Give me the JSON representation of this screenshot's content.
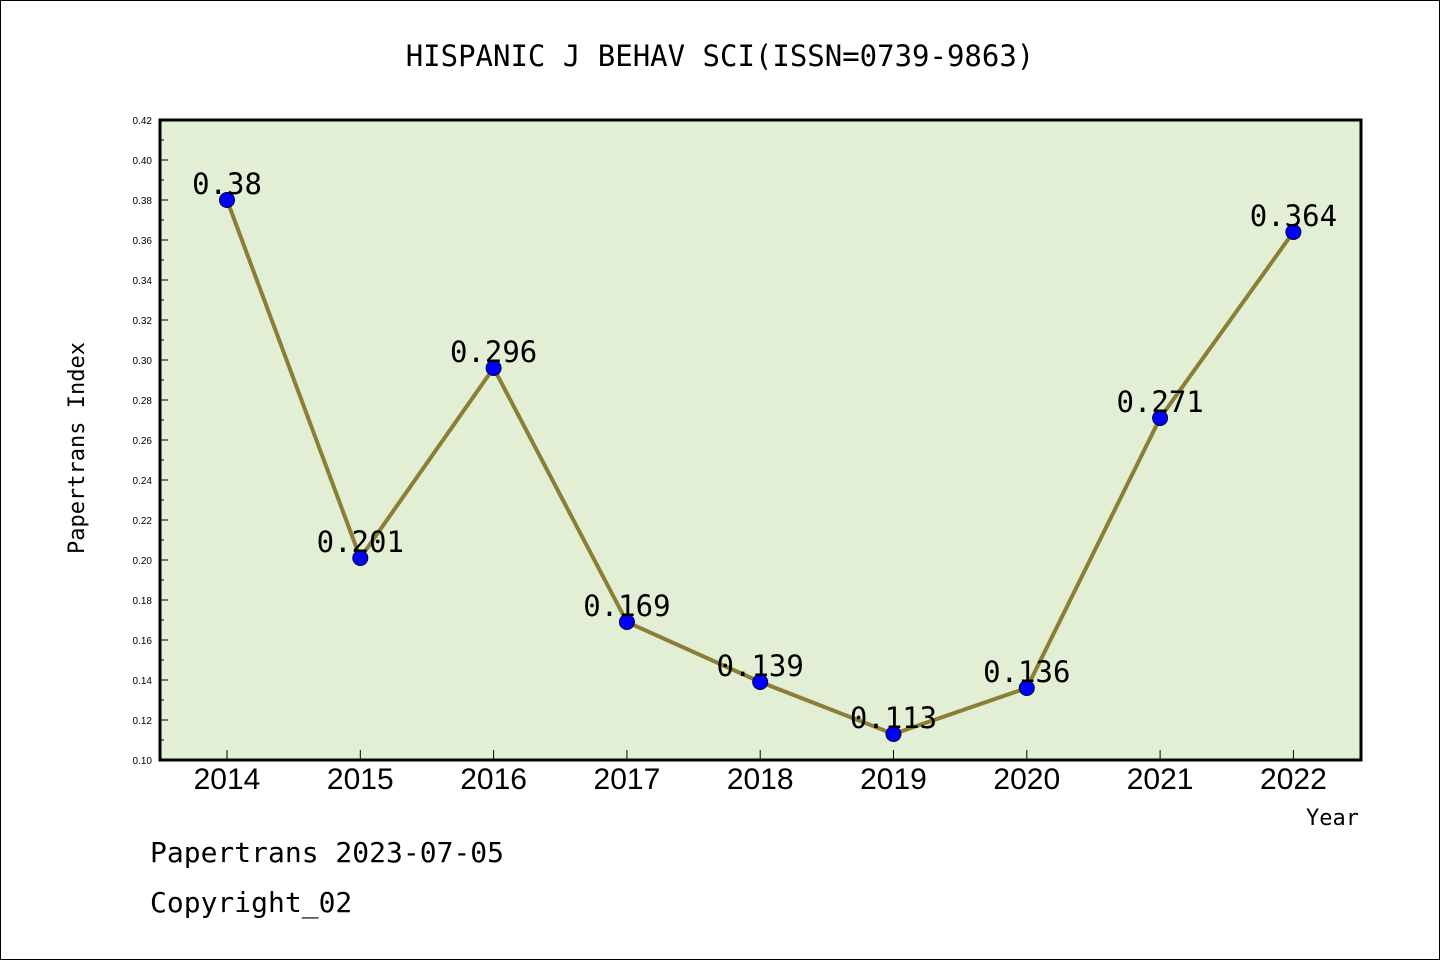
{
  "chart_data": {
    "type": "line",
    "title": "HISPANIC J BEHAV SCI(ISSN=0739-9863)",
    "xlabel": "Year",
    "ylabel": "Papertrans Index",
    "categories": [
      "2014",
      "2015",
      "2016",
      "2017",
      "2018",
      "2019",
      "2020",
      "2021",
      "2022"
    ],
    "values": [
      0.38,
      0.201,
      0.296,
      0.169,
      0.139,
      0.113,
      0.136,
      0.271,
      0.364
    ],
    "data_labels": [
      "0.38",
      "0.201",
      "0.296",
      "0.169",
      "0.139",
      "0.113",
      "0.136",
      "0.271",
      "0.364"
    ],
    "ylim": [
      0.1,
      0.42
    ],
    "yticks": [
      "0.10",
      "0.12",
      "0.14",
      "0.16",
      "0.18",
      "0.20",
      "0.22",
      "0.24",
      "0.26",
      "0.28",
      "0.30",
      "0.32",
      "0.34",
      "0.36",
      "0.38",
      "0.40",
      "0.42"
    ],
    "grid": false,
    "colors": {
      "plot_background": "#e2efd5",
      "line": "#8b7e35",
      "marker": "#0000ff"
    }
  },
  "footer": {
    "line1": "Papertrans 2023-07-05",
    "line2": "Copyright_02"
  }
}
